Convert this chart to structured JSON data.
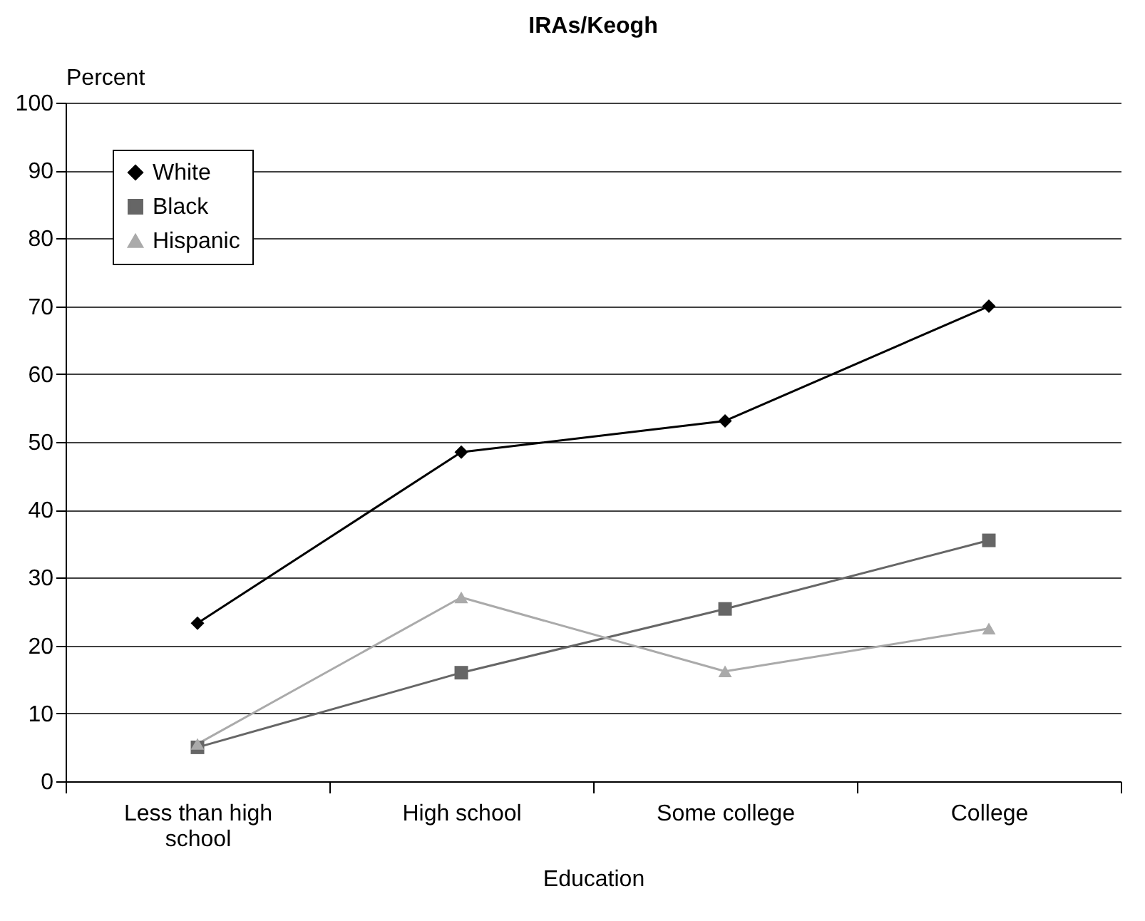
{
  "chart_data": {
    "type": "line",
    "title": "IRAs/Keogh",
    "xlabel": "Education",
    "ylabel": "Percent",
    "categories": [
      "Less than high school",
      "High school",
      "Some college",
      "College"
    ],
    "series": [
      {
        "name": "White",
        "color": "#000000",
        "marker": "diamond",
        "values": [
          23.3,
          48.5,
          53.1,
          70
        ]
      },
      {
        "name": "Black",
        "color": "#666666",
        "marker": "square",
        "values": [
          5,
          16,
          25.4,
          35.5
        ]
      },
      {
        "name": "Hispanic",
        "color": "#aaaaaa",
        "marker": "triangle",
        "values": [
          5.5,
          27.1,
          16.2,
          22.5
        ]
      }
    ],
    "ylim": [
      0,
      100
    ],
    "yticks": [
      0,
      10,
      20,
      30,
      40,
      50,
      60,
      70,
      80,
      90,
      100
    ],
    "grid": "y",
    "legend": "top left",
    "line_style": "solid"
  }
}
